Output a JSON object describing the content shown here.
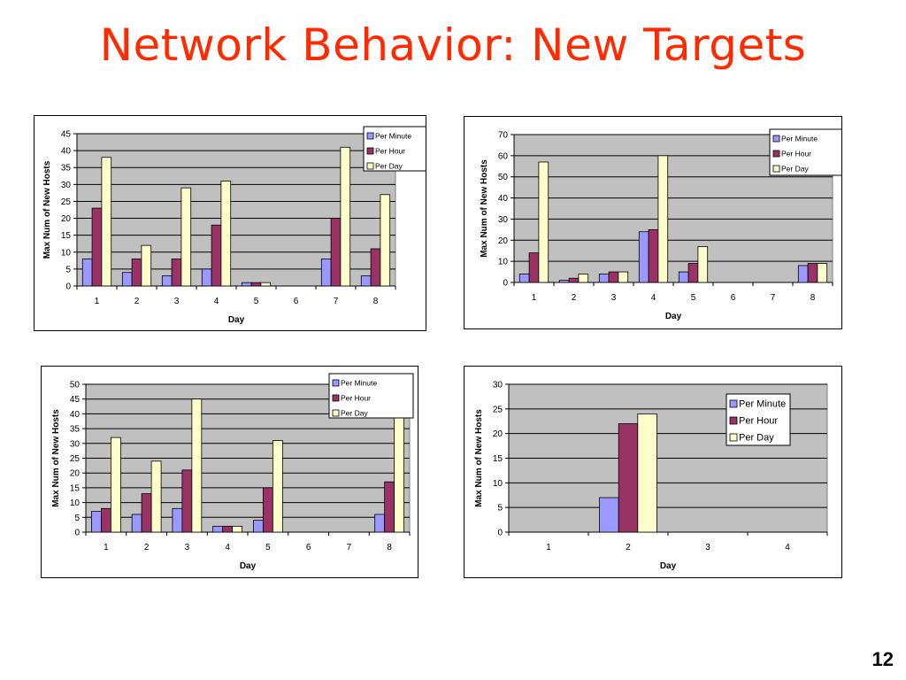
{
  "slide": {
    "title": "Network Behavior: New Targets",
    "page_number": "12"
  },
  "colors": {
    "per_minute": "#9999ff",
    "per_hour": "#993366",
    "per_day": "#ffffcc",
    "plot_bg": "#c0c0c0",
    "title": "#ff2a00"
  },
  "chart_data": [
    {
      "type": "bar",
      "xlabel": "Day",
      "ylabel": "Max Num of New Hosts",
      "ylim": [
        0,
        45
      ],
      "ytick_step": 5,
      "categories": [
        "1",
        "2",
        "3",
        "4",
        "5",
        "6",
        "7",
        "8"
      ],
      "grid": true,
      "legend_position": "top-right",
      "series": [
        {
          "name": "Per Minute",
          "values": [
            8,
            4,
            3,
            5,
            1,
            0,
            8,
            3
          ]
        },
        {
          "name": "Per Hour",
          "values": [
            23,
            8,
            8,
            18,
            1,
            0,
            20,
            11
          ]
        },
        {
          "name": "Per Day",
          "values": [
            38,
            12,
            29,
            31,
            1,
            0,
            41,
            27
          ]
        }
      ]
    },
    {
      "type": "bar",
      "xlabel": "Day",
      "ylabel": "Max Num of New Hosts",
      "ylim": [
        0,
        70
      ],
      "ytick_step": 10,
      "categories": [
        "1",
        "2",
        "3",
        "4",
        "5",
        "6",
        "7",
        "8"
      ],
      "grid": true,
      "legend_position": "top-right",
      "series": [
        {
          "name": "Per Minute",
          "values": [
            4,
            1,
            4,
            24,
            5,
            0,
            0,
            8
          ]
        },
        {
          "name": "Per Hour",
          "values": [
            14,
            2,
            5,
            25,
            9,
            0,
            0,
            9
          ]
        },
        {
          "name": "Per Day",
          "values": [
            57,
            4,
            5,
            60,
            17,
            0,
            0,
            9
          ]
        }
      ]
    },
    {
      "type": "bar",
      "xlabel": "Day",
      "ylabel": "Max Num of New Hosts",
      "ylim": [
        0,
        50
      ],
      "ytick_step": 5,
      "categories": [
        "1",
        "2",
        "3",
        "4",
        "5",
        "6",
        "7",
        "8"
      ],
      "grid": true,
      "legend_position": "top-right",
      "series": [
        {
          "name": "Per Minute",
          "values": [
            7,
            6,
            8,
            2,
            4,
            0,
            0,
            6
          ]
        },
        {
          "name": "Per Hour",
          "values": [
            8,
            13,
            21,
            2,
            15,
            0,
            0,
            17
          ]
        },
        {
          "name": "Per Day",
          "values": [
            32,
            24,
            45,
            2,
            31,
            0,
            0,
            42
          ]
        }
      ]
    },
    {
      "type": "bar",
      "xlabel": "Day",
      "ylabel": "Max Num of New Hosts",
      "ylim": [
        0,
        30
      ],
      "ytick_step": 5,
      "categories": [
        "1",
        "2",
        "3",
        "4"
      ],
      "grid": true,
      "legend_position": "top-right",
      "series": [
        {
          "name": "Per Minute",
          "values": [
            0,
            7,
            0,
            0
          ]
        },
        {
          "name": "Per Hour",
          "values": [
            0,
            22,
            0,
            0
          ]
        },
        {
          "name": "Per Day",
          "values": [
            0,
            24,
            0,
            0
          ]
        }
      ]
    }
  ]
}
